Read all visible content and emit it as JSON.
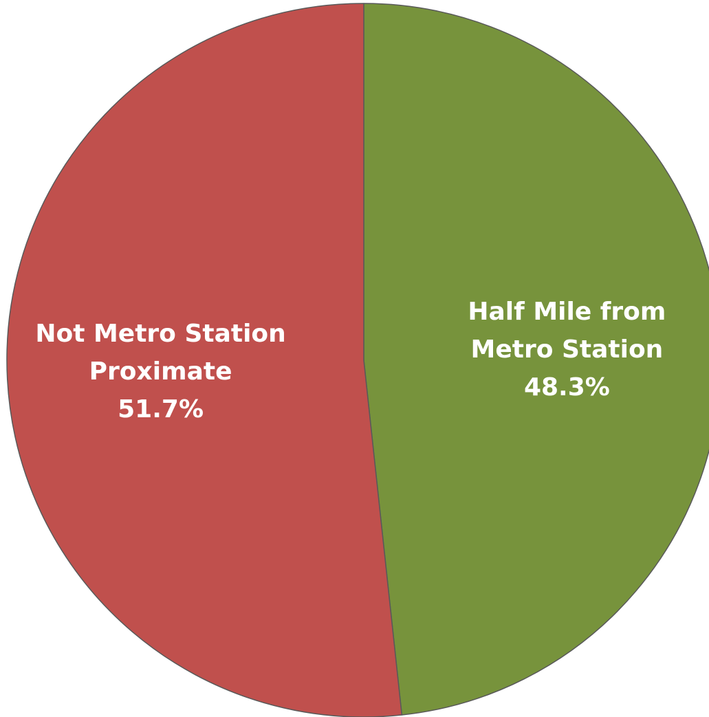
{
  "chart_data": {
    "type": "pie",
    "slices": [
      {
        "name": "Half Mile from Metro Station",
        "value": 48.3,
        "percent_label": "48.3%",
        "label_lines": [
          "Half Mile from",
          "Metro Station"
        ],
        "color": "#77933c"
      },
      {
        "name": "Not Metro Station Proximate",
        "value": 51.7,
        "percent_label": "51.7%",
        "label_lines": [
          "Not Metro Station",
          "Proximate"
        ],
        "color": "#c0504d"
      }
    ],
    "start_angle_deg": 0,
    "direction": "clockwise",
    "data_labels": "inside",
    "legend": "none",
    "border_color": "#595959"
  }
}
